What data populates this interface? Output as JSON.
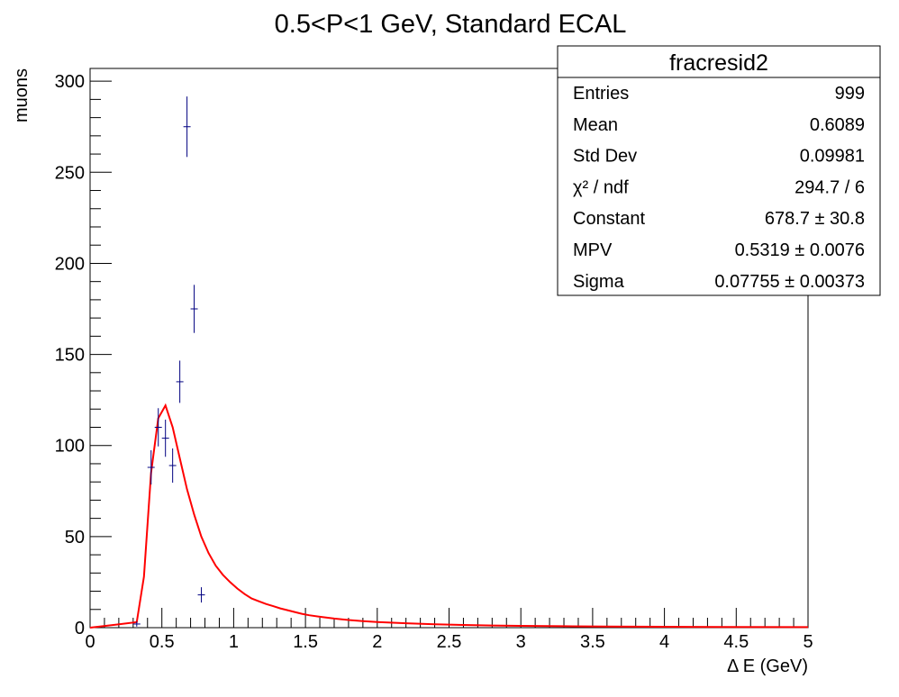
{
  "chart_data": {
    "type": "scatter",
    "title": "0.5<P<1 GeV, Standard ECAL",
    "xlabel": "Δ E (GeV)",
    "ylabel": "muons",
    "xlim": [
      0,
      5
    ],
    "ylim": [
      0,
      307
    ],
    "x_ticks": [
      "0",
      "0.5",
      "1",
      "1.5",
      "2",
      "2.5",
      "3",
      "3.5",
      "4",
      "4.5",
      "5"
    ],
    "y_ticks": [
      "0",
      "50",
      "100",
      "150",
      "200",
      "250",
      "300"
    ],
    "bin_width": 0.05,
    "grid": false,
    "points": [
      {
        "x": 0.325,
        "y": 2,
        "err": 1.4
      },
      {
        "x": 0.425,
        "y": 88,
        "err": 9.4
      },
      {
        "x": 0.475,
        "y": 110,
        "err": 10.5
      },
      {
        "x": 0.525,
        "y": 104,
        "err": 10.2
      },
      {
        "x": 0.575,
        "y": 89,
        "err": 9.4
      },
      {
        "x": 0.625,
        "y": 135,
        "err": 11.6
      },
      {
        "x": 0.675,
        "y": 275,
        "err": 16.6
      },
      {
        "x": 0.725,
        "y": 175,
        "err": 13.2
      },
      {
        "x": 0.775,
        "y": 18,
        "err": 4.2
      }
    ],
    "fit": {
      "function": "landau",
      "color": "#ff0000",
      "points": [
        [
          0.0,
          0
        ],
        [
          0.325,
          3
        ],
        [
          0.375,
          28
        ],
        [
          0.425,
          85
        ],
        [
          0.475,
          115
        ],
        [
          0.525,
          122
        ],
        [
          0.575,
          110
        ],
        [
          0.625,
          93
        ],
        [
          0.675,
          76
        ],
        [
          0.725,
          62
        ],
        [
          0.775,
          50
        ],
        [
          0.825,
          41
        ],
        [
          0.875,
          34
        ],
        [
          0.925,
          29
        ],
        [
          0.975,
          25
        ],
        [
          1.025,
          21.5
        ],
        [
          1.075,
          18.5
        ],
        [
          1.125,
          16
        ],
        [
          1.175,
          14.5
        ],
        [
          1.225,
          13
        ],
        [
          1.275,
          11.8
        ],
        [
          1.325,
          10.6
        ],
        [
          1.375,
          9.6
        ],
        [
          1.425,
          8.6
        ],
        [
          1.475,
          7.6
        ],
        [
          1.525,
          6.8
        ],
        [
          1.6,
          6
        ],
        [
          1.7,
          5
        ],
        [
          1.8,
          4.2
        ],
        [
          1.9,
          3.6
        ],
        [
          2.0,
          3.1
        ],
        [
          2.2,
          2.4
        ],
        [
          2.4,
          1.9
        ],
        [
          2.6,
          1.5
        ],
        [
          2.8,
          1.2
        ],
        [
          3.0,
          1.0
        ],
        [
          3.3,
          0.8
        ],
        [
          3.6,
          0.6
        ],
        [
          4.0,
          0.5
        ],
        [
          4.4,
          0.4
        ],
        [
          5.0,
          0.3
        ]
      ]
    },
    "marker_color": "#000080",
    "legend_position": "top-right"
  },
  "stats_box": {
    "title": "fracresid2",
    "rows": [
      {
        "label": "Entries",
        "value": "999"
      },
      {
        "label": "Mean",
        "value": "0.6089"
      },
      {
        "label": "Std Dev",
        "value": "0.09981"
      },
      {
        "label": "χ² / ndf",
        "value": "294.7 / 6"
      },
      {
        "label": "Constant",
        "value": "678.7 ± 30.8"
      },
      {
        "label": "MPV",
        "value": "0.5319 ± 0.0076"
      },
      {
        "label": "Sigma",
        "value": "0.07755 ± 0.00373"
      }
    ]
  }
}
